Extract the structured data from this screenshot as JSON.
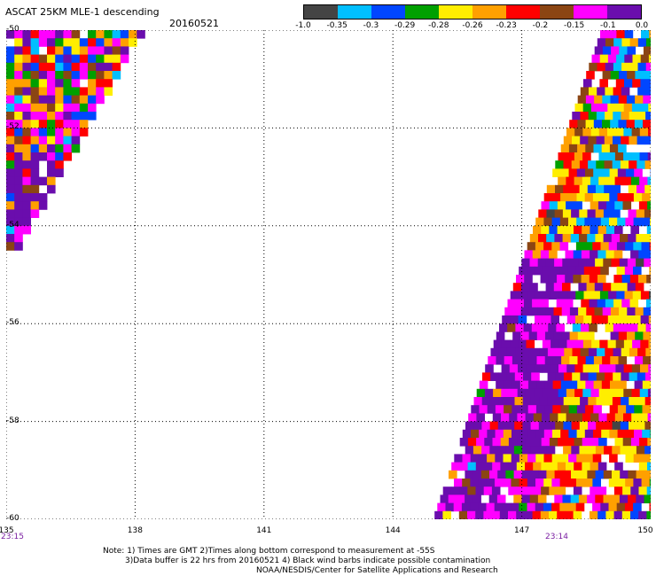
{
  "header": {
    "title": "ASCAT 25KM MLE-1 descending",
    "date": "20160521"
  },
  "colorbar": {
    "colors": [
      "#444444",
      "#00bfff",
      "#0046ff",
      "#00a000",
      "#ffee00",
      "#ffa000",
      "#ff0000",
      "#8b4513",
      "#ff00ff",
      "#6a0dad"
    ],
    "labels": [
      "-1.0",
      "-0.35",
      "-0.3",
      "-0.29",
      "-0.28",
      "-0.26",
      "-0.23",
      "-0.2",
      "-0.15",
      "-0.1",
      "0.0"
    ]
  },
  "map": {
    "lat_labels": [
      "-50",
      "-52",
      "-54",
      "-56",
      "-58",
      "-60"
    ],
    "lon_labels": [
      "135",
      "138",
      "141",
      "144",
      "147",
      "150"
    ],
    "lat_range": [
      -60,
      -50
    ],
    "lon_range": [
      135,
      150
    ],
    "time_left": "23:15",
    "time_right": "23:14"
  },
  "footer": {
    "line1": "Note: 1) Times are GMT 2)Times along bottom correspond to measurement at -55S",
    "line2": "3)Data buffer is 22 hrs from 20160521 4) Black wind barbs indicate possible contamination",
    "line3": "NOAA/NESDIS/Center for Satellite Applications and Research"
  }
}
